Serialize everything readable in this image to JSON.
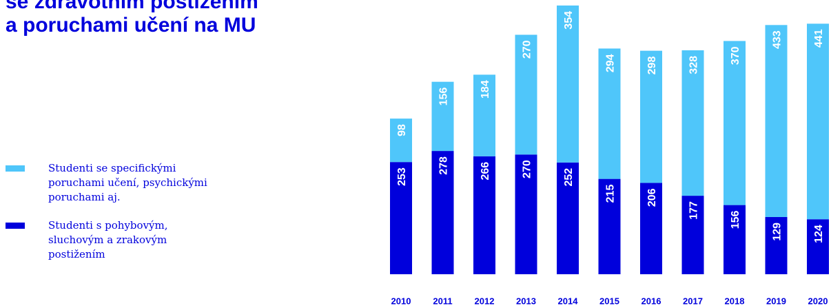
{
  "chart_data": {
    "type": "stacked_bar",
    "title_lines": [
      "se zdravotním postižením",
      "a poruchami učení na MU"
    ],
    "categories": [
      "2010",
      "2011",
      "2012",
      "2013",
      "2014",
      "2015",
      "2016",
      "2017",
      "2018",
      "2019",
      "2020"
    ],
    "series": [
      {
        "name": "Studenti s pohybovým, sluchovým a zrakovým postižením",
        "color": "#0000dc",
        "values": [
          253,
          278,
          266,
          270,
          252,
          215,
          206,
          177,
          156,
          129,
          124
        ]
      },
      {
        "name": "Studenti se specifickými poruchami učení, psychickými poruchami aj.",
        "color": "#4fc6fa",
        "values": [
          98,
          156,
          184,
          270,
          354,
          294,
          298,
          328,
          370,
          433,
          441
        ]
      }
    ]
  }
}
